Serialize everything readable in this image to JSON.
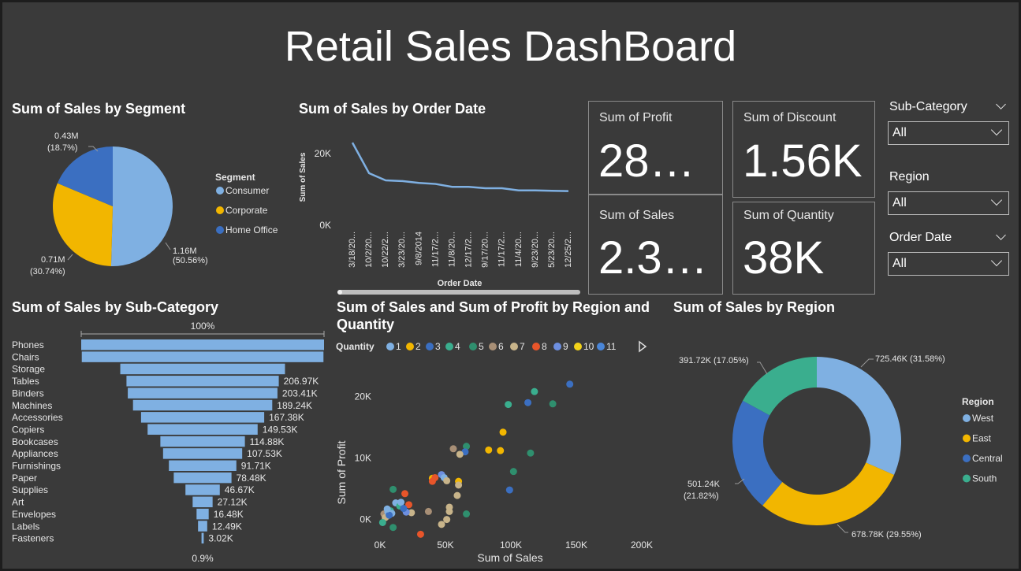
{
  "header": {
    "title": "Retail Sales DashBoard"
  },
  "segment_chart": {
    "title": "Sum of Sales by Segment",
    "legend_title": "Segment",
    "chart_data": {
      "type": "pie",
      "categories": [
        "Consumer",
        "Corporate",
        "Home Office"
      ],
      "values": [
        1.16,
        0.71,
        0.43
      ],
      "percents": [
        50.56,
        30.74,
        18.7
      ],
      "labels": [
        "1.16M",
        "0.71M",
        "0.43M"
      ],
      "label_pcts": [
        "(50.56%)",
        "(30.74%)",
        "(18.7%)"
      ],
      "colors": [
        "#7fb0e2",
        "#f2b600",
        "#3b6fc1"
      ]
    }
  },
  "date_chart": {
    "title": "Sum of Sales by Order Date",
    "ylabel": "Sum of Sales",
    "xlabel": "Order Date",
    "chart_data": {
      "type": "line",
      "x": [
        "3/18/20...",
        "10/2/20...",
        "10/22/2...",
        "3/23/20...",
        "9/8/2014",
        "11/17/2...",
        "11/8/20...",
        "12/17/2...",
        "9/17/20...",
        "11/17/2...",
        "11/4/20...",
        "9/23/20...",
        "5/23/20...",
        "12/25/2..."
      ],
      "values": [
        23000,
        14500,
        12500,
        12300,
        11800,
        11500,
        10700,
        10700,
        10300,
        10300,
        9700,
        9700,
        9600,
        9500
      ],
      "yticks": [
        "20K",
        "0K"
      ],
      "ylim": [
        0,
        25000
      ],
      "color": "#7fb0e2"
    }
  },
  "kpis": {
    "profit": {
      "label": "Sum of Profit",
      "value": "28…"
    },
    "discount": {
      "label": "Sum of Discount",
      "value": "1.56K"
    },
    "sales": {
      "label": "Sum of Sales",
      "value": "2.3…"
    },
    "quantity": {
      "label": "Sum of Quantity",
      "value": "38K"
    }
  },
  "slicers": {
    "subcategory": {
      "label": "Sub-Category",
      "value": "All"
    },
    "region": {
      "label": "Region",
      "value": "All"
    },
    "order_date": {
      "label": "Order Date",
      "value": "All"
    }
  },
  "subcategory_chart": {
    "title": "Sum of Sales by Sub-Category",
    "top_label": "100%",
    "bottom_label": "0.9%",
    "chart_data": {
      "type": "bar",
      "categories": [
        "Phones",
        "Chairs",
        "Storage",
        "Tables",
        "Binders",
        "Machines",
        "Accessories",
        "Copiers",
        "Bookcases",
        "Appliances",
        "Furnishings",
        "Paper",
        "Supplies",
        "Art",
        "Envelopes",
        "Labels",
        "Fasteners"
      ],
      "values": [
        330.01,
        328.45,
        223.84,
        206.97,
        203.41,
        189.24,
        167.38,
        149.53,
        114.88,
        107.53,
        91.71,
        78.48,
        46.67,
        27.12,
        16.48,
        12.49,
        3.02
      ],
      "labels": [
        "",
        "",
        "",
        "206.97K",
        "203.41K",
        "189.24K",
        "167.38K",
        "149.53K",
        "114.88K",
        "107.53K",
        "91.71K",
        "78.48K",
        "46.67K",
        "27.12K",
        "16.48K",
        "12.49K",
        "3.02K"
      ],
      "color": "#7fb0e2"
    }
  },
  "scatter_chart": {
    "title_line1": "Sum of Sales and Sum of Profit by Region and",
    "title_line2": "Quantity",
    "legend_title": "Quantity",
    "xlabel": "Sum of Sales",
    "ylabel": "Sum of Profit",
    "chart_data": {
      "type": "scatter",
      "xticks": [
        "0K",
        "50K",
        "100K",
        "150K",
        "200K"
      ],
      "yticks": [
        "20K",
        "10K",
        "0K"
      ],
      "xlim": [
        0,
        200000
      ],
      "ylim": [
        -3000,
        23000
      ],
      "legend": [
        "1",
        "2",
        "3",
        "4",
        "5",
        "6",
        "7",
        "8",
        "9",
        "10",
        "11"
      ],
      "colors": [
        "#7fb0e2",
        "#f2b600",
        "#3b6fc1",
        "#3aae8e",
        "#2f8f6e",
        "#a88f76",
        "#c8b48a",
        "#e8552a",
        "#6d8fe0",
        "#f2d21a",
        "#4a86d8"
      ],
      "points": [
        [
          145000,
          22000,
          2
        ],
        [
          118000,
          20800,
          3
        ],
        [
          98000,
          18700,
          3
        ],
        [
          113000,
          19000,
          2
        ],
        [
          132000,
          18800,
          4
        ],
        [
          94000,
          14200,
          1
        ],
        [
          66000,
          11900,
          4
        ],
        [
          65000,
          11000,
          2
        ],
        [
          56000,
          11500,
          5
        ],
        [
          61000,
          10600,
          6
        ],
        [
          83000,
          11300,
          1
        ],
        [
          92000,
          11200,
          1
        ],
        [
          115000,
          10800,
          4
        ],
        [
          102000,
          7800,
          4
        ],
        [
          99000,
          4800,
          2
        ],
        [
          40000,
          6700,
          1
        ],
        [
          42000,
          6800,
          7
        ],
        [
          47000,
          7300,
          8
        ],
        [
          49000,
          6800,
          0
        ],
        [
          51000,
          6300,
          6
        ],
        [
          60000,
          6200,
          1
        ],
        [
          60000,
          5600,
          6
        ],
        [
          40000,
          6200,
          7
        ],
        [
          10000,
          4900,
          4
        ],
        [
          12000,
          2700,
          0
        ],
        [
          15000,
          2200,
          3
        ],
        [
          19000,
          4200,
          7
        ],
        [
          22000,
          2400,
          7
        ],
        [
          24000,
          1100,
          6
        ],
        [
          20000,
          1200,
          8
        ],
        [
          16000,
          2800,
          0
        ],
        [
          18000,
          1800,
          2
        ],
        [
          59000,
          3900,
          6
        ],
        [
          53000,
          2000,
          6
        ],
        [
          37000,
          1300,
          5
        ],
        [
          53000,
          1300,
          6
        ],
        [
          51000,
          0,
          6
        ],
        [
          47000,
          -800,
          6
        ],
        [
          31000,
          -2400,
          7
        ],
        [
          10000,
          -1300,
          4
        ],
        [
          5000,
          500,
          0
        ],
        [
          3000,
          900,
          5
        ],
        [
          4000,
          300,
          6
        ],
        [
          6000,
          1200,
          0
        ],
        [
          8000,
          1400,
          3
        ],
        [
          2000,
          -500,
          3
        ],
        [
          9000,
          1000,
          0
        ],
        [
          7000,
          700,
          2
        ],
        [
          66000,
          900,
          4
        ],
        [
          5500,
          1700,
          0
        ]
      ]
    }
  },
  "region_chart": {
    "title": "Sum of Sales by Region",
    "legend_title": "Region",
    "chart_data": {
      "type": "pie",
      "categories": [
        "West",
        "East",
        "Central",
        "South"
      ],
      "values": [
        725.46,
        678.78,
        501.24,
        391.72
      ],
      "percents": [
        31.58,
        29.55,
        21.82,
        17.05
      ],
      "labels": [
        "725.46K (31.58%)",
        "678.78K (29.55%)",
        "501.24K",
        "391.72K (17.05%)"
      ],
      "label_extra": [
        "",
        "",
        "(21.82%)",
        ""
      ],
      "colors": [
        "#7fb0e2",
        "#f2b600",
        "#3b6fc1",
        "#3aae8e"
      ]
    }
  }
}
